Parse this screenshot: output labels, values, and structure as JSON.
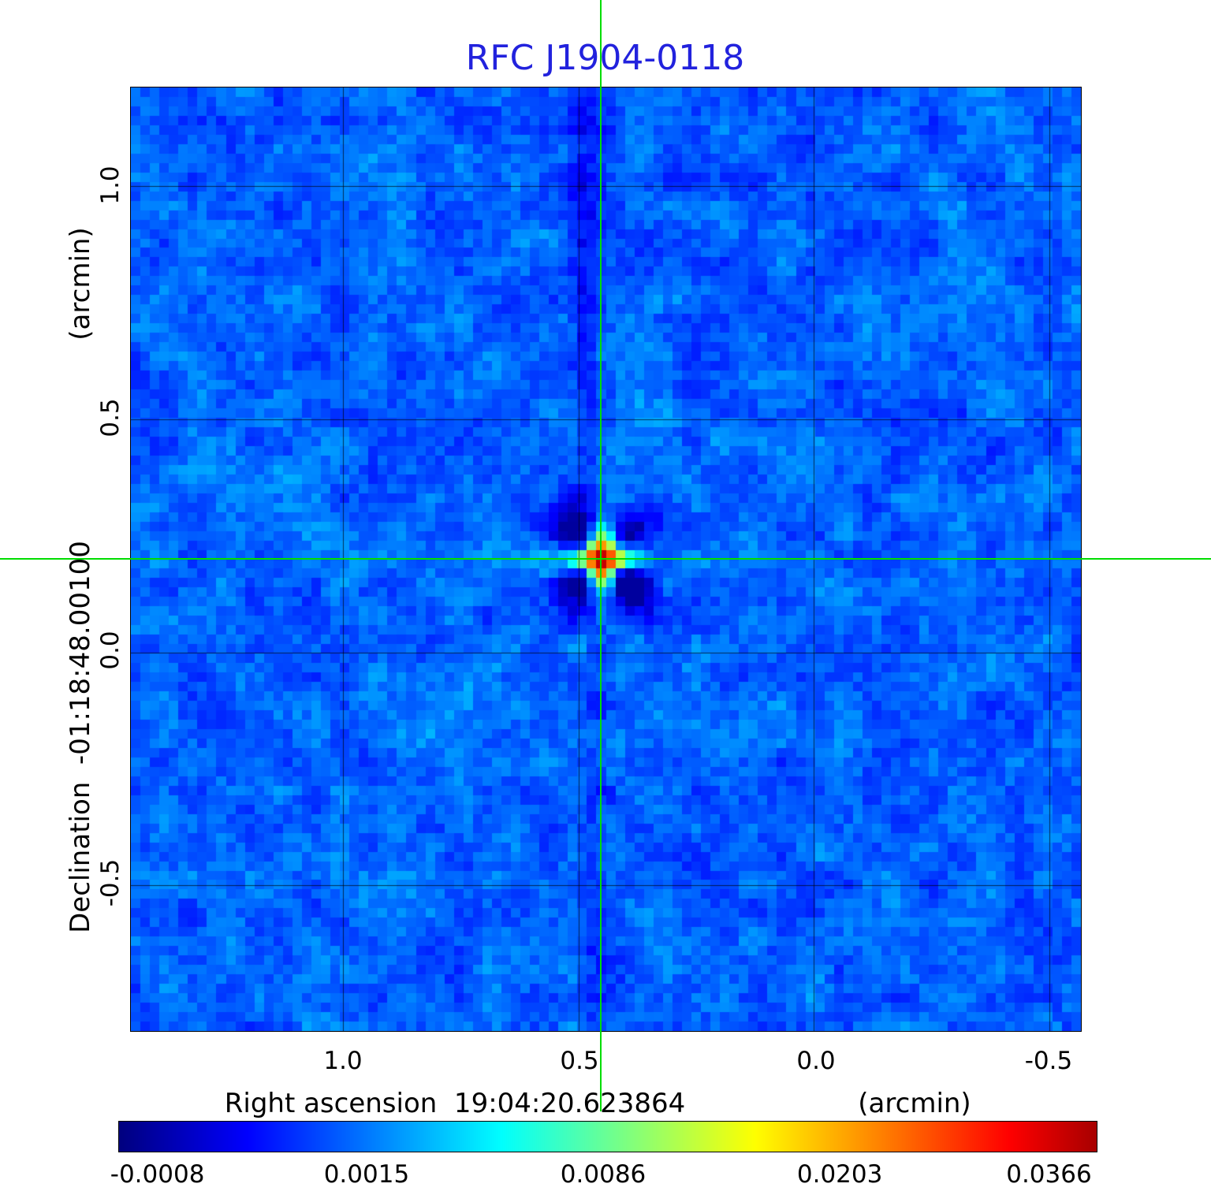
{
  "title": "RFC J1904-0118",
  "axes": {
    "y_unit": "(arcmin)",
    "y_label": "Declination  -01:18:48.00100",
    "y_ticks": [
      "1.0",
      "0.5",
      "0.0",
      "-0.5"
    ],
    "x_label": "Right ascension  19:04:20.623864",
    "x_unit": "(arcmin)",
    "x_ticks": [
      "1.0",
      "0.5",
      "0.0",
      "-0.5"
    ]
  },
  "colorbar": {
    "ticks": [
      "-0.0008",
      "0.0015",
      "0.0086",
      "0.0203",
      "0.0366"
    ]
  },
  "colors": {
    "title_blue": "#2222dd",
    "crosshair_green": "#00dd00",
    "grid_black": "#000000"
  },
  "chart_data": {
    "type": "heatmap",
    "title": "RFC J1904-0118",
    "xlabel": "Right ascension  19:04:20.623864  (arcmin)",
    "ylabel": "Declination  -01:18:48.00100  (arcmin)",
    "x_range_arcmin": [
      1.45,
      -0.567
    ],
    "y_range_arcmin": [
      1.212,
      -0.812
    ],
    "x_ticks_arcmin": [
      1.0,
      0.5,
      0.0,
      -0.5
    ],
    "y_ticks_arcmin": [
      1.0,
      0.5,
      0.0,
      -0.5
    ],
    "grid": true,
    "legend": "none",
    "colormap": "jet",
    "colorbar_ticks": [
      -0.0008,
      0.0015,
      0.0086,
      0.0203,
      0.0366
    ],
    "intensity_min": -0.0008,
    "intensity_max": 0.0366,
    "source_peak": {
      "x_arcmin": 0.45,
      "y_arcmin": 0.2,
      "peak_value": 0.0366
    },
    "crosshair_arcmin": {
      "x": 0.45,
      "y": 0.2
    },
    "background_level_range": [
      -0.0008,
      0.003
    ],
    "map_pixel_size_px": 12
  }
}
